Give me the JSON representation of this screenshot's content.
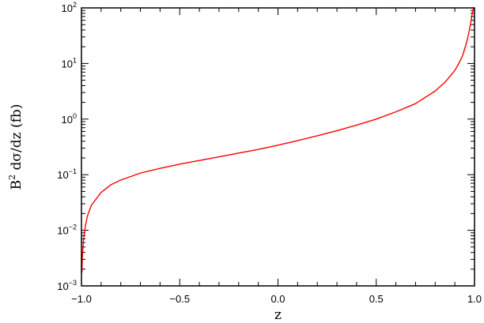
{
  "chart_data": {
    "type": "line",
    "title": "",
    "xlabel": "z",
    "ylabel": {
      "prefix": "B",
      "superscript": "2",
      "suffix": "  dσ/dz  (fb)"
    },
    "xlim": [
      -1.0,
      1.0
    ],
    "ylim": [
      0.001,
      100
    ],
    "yscale": "log",
    "grid": false,
    "x_ticks": [
      {
        "value": -1.0,
        "label": "−1.0"
      },
      {
        "value": -0.5,
        "label": "−0.5"
      },
      {
        "value": 0.0,
        "label": "0.0"
      },
      {
        "value": 0.5,
        "label": "0.5"
      },
      {
        "value": 1.0,
        "label": "1.0"
      }
    ],
    "y_ticks": [
      {
        "value": 0.001,
        "base": "10",
        "exp": "−3"
      },
      {
        "value": 0.01,
        "base": "10",
        "exp": "−2"
      },
      {
        "value": 0.1,
        "base": "10",
        "exp": "−1"
      },
      {
        "value": 1,
        "base": "10",
        "exp": "0"
      },
      {
        "value": 10,
        "base": "10",
        "exp": "1"
      },
      {
        "value": 100,
        "base": "10",
        "exp": "2"
      }
    ],
    "series": [
      {
        "color": "#ff0000",
        "x": [
          -0.998,
          -0.995,
          -0.99,
          -0.98,
          -0.97,
          -0.95,
          -0.9,
          -0.85,
          -0.8,
          -0.7,
          -0.6,
          -0.5,
          -0.4,
          -0.3,
          -0.2,
          -0.1,
          0.0,
          0.1,
          0.2,
          0.3,
          0.4,
          0.5,
          0.6,
          0.7,
          0.8,
          0.85,
          0.9,
          0.92,
          0.94,
          0.96,
          0.97,
          0.98,
          0.99,
          0.995
        ],
        "y": [
          0.0017,
          0.0035,
          0.0065,
          0.012,
          0.018,
          0.028,
          0.048,
          0.066,
          0.08,
          0.107,
          0.13,
          0.155,
          0.18,
          0.21,
          0.245,
          0.285,
          0.34,
          0.41,
          0.5,
          0.62,
          0.78,
          1.0,
          1.35,
          1.9,
          3.2,
          4.6,
          7.5,
          10,
          14,
          24,
          34,
          52,
          85,
          100
        ]
      }
    ]
  }
}
